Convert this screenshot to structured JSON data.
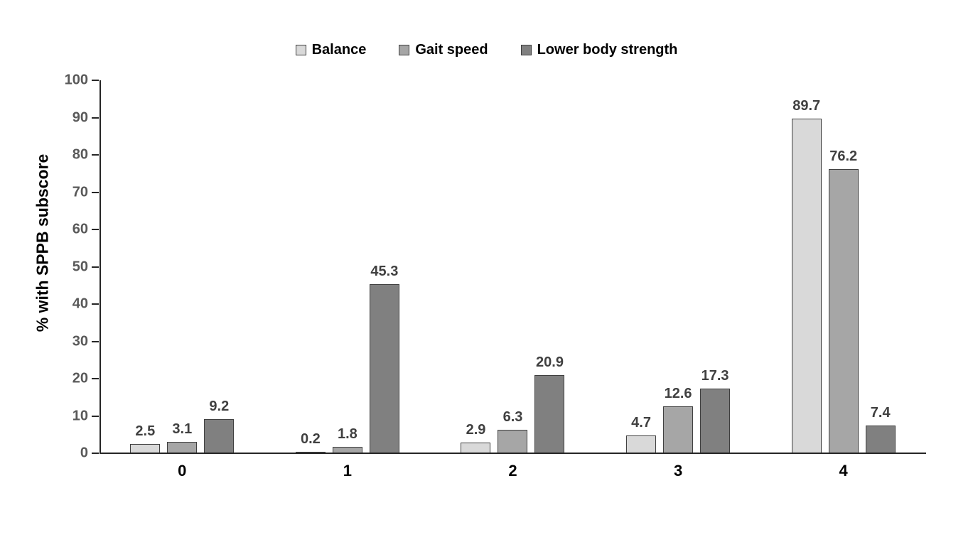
{
  "background_color": "#ffffff",
  "chart_data": {
    "type": "bar",
    "title": "",
    "categories": [
      "0",
      "1",
      "2",
      "3",
      "4"
    ],
    "series": [
      {
        "name": "Balance",
        "color": "#d9d9d9",
        "values": [
          2.5,
          0.2,
          2.9,
          4.7,
          89.7
        ]
      },
      {
        "name": "Gait speed",
        "color": "#a6a6a6",
        "values": [
          3.1,
          1.8,
          6.3,
          12.6,
          76.2
        ]
      },
      {
        "name": "Lower body strength",
        "color": "#808080",
        "values": [
          9.2,
          45.3,
          20.9,
          17.3,
          7.4
        ]
      }
    ],
    "xlabel": "",
    "ylabel": "% with SPPB subscore",
    "ylim": [
      0,
      100
    ],
    "yticks": [
      0,
      10,
      20,
      30,
      40,
      50,
      60,
      70,
      80,
      90,
      100
    ],
    "legend_position": "top",
    "grid": false,
    "data_labels": true,
    "data_label_decimals": 1,
    "bar_border_color": "#404040",
    "axis_line_color": "#262626",
    "ytick_label_color": "#595959",
    "xtick_label_color": "#000000",
    "data_label_color": "#404040"
  }
}
